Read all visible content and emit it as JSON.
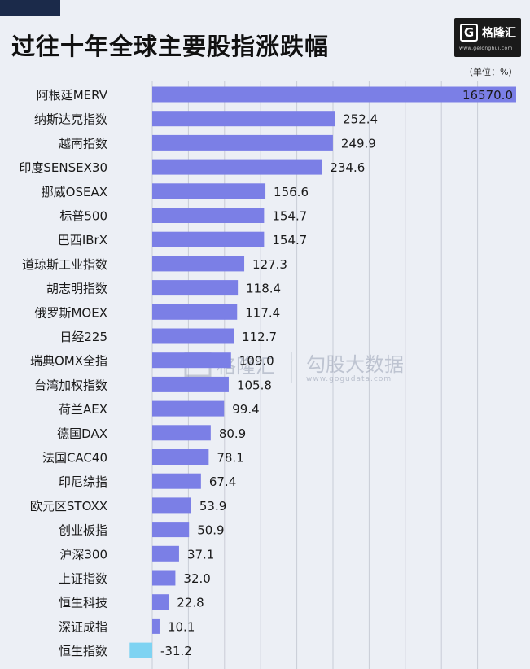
{
  "title": "过往十年全球主要股指涨跌幅",
  "unit": "（单位：%）",
  "logo": {
    "glyph": "G",
    "name": "格隆汇",
    "url": "www.gelonghui.com"
  },
  "watermark": {
    "brand_left": "格隆汇",
    "brand_right": "勾股大数据",
    "url": "www.gogudata.com"
  },
  "colors": {
    "positive": "#7b7fe6",
    "negative": "#7ed3f2",
    "grid": "#c9ccd6"
  },
  "chart_data": {
    "type": "bar",
    "orientation": "horizontal",
    "title": "过往十年全球主要股指涨跌幅",
    "unit": "（单位：%）",
    "categories": [
      "阿根廷MERV",
      "纳斯达克指数",
      "越南指数",
      "印度SENSEX30",
      "挪威OSEAX",
      "标普500",
      "巴西IBrX",
      "道琼斯工业指数",
      "胡志明指数",
      "俄罗斯MOEX",
      "日经225",
      "瑞典OMX全指",
      "台湾加权指数",
      "荷兰AEX",
      "德国DAX",
      "法国CAC40",
      "印尼综指",
      "欧元区STOXX",
      "创业板指",
      "沪深300",
      "上证指数",
      "恒生科技",
      "深证成指",
      "恒生指数"
    ],
    "values": [
      16570.0,
      252.4,
      249.9,
      234.6,
      156.6,
      154.7,
      154.7,
      127.3,
      118.4,
      117.4,
      112.7,
      109.0,
      105.8,
      99.4,
      80.9,
      78.1,
      67.4,
      53.9,
      50.9,
      37.1,
      32.0,
      22.8,
      10.1,
      -31.2
    ],
    "value_labels": [
      "16570.0",
      "252.4",
      "249.9",
      "234.6",
      "156.6",
      "154.7",
      "154.7",
      "127.3",
      "118.4",
      "117.4",
      "112.7",
      "109.0",
      "105.8",
      "99.4",
      "80.9",
      "78.1",
      "67.4",
      "53.9",
      "50.9",
      "37.1",
      "32.0",
      "22.8",
      "10.1",
      "-31.2"
    ],
    "note": "first bar truncated at chart edge",
    "grid": true
  }
}
